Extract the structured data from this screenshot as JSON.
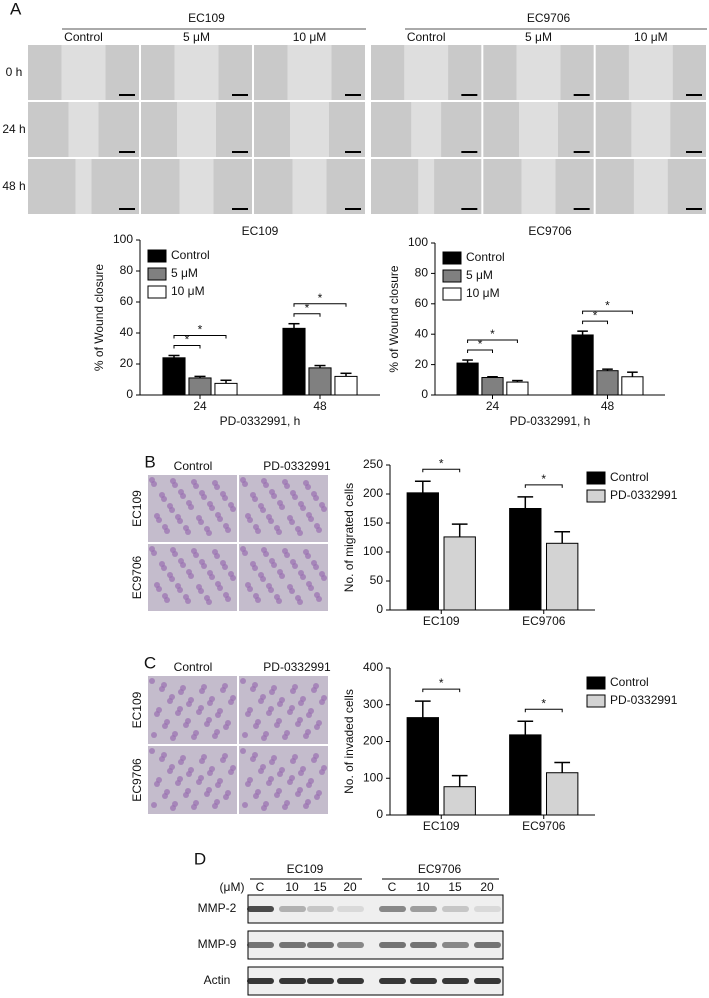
{
  "panel_a": {
    "label": "A",
    "cell_lines": [
      {
        "name": "EC109",
        "conditions": [
          "Control",
          "5 μM",
          "10 μM"
        ]
      },
      {
        "name": "EC9706",
        "conditions": [
          "Control",
          "5 μM",
          "10 μM"
        ]
      }
    ],
    "times": [
      "0 h",
      "24 h",
      "48 h"
    ]
  },
  "panel_b": {
    "label": "B",
    "columns": [
      "Control",
      "PD-0332991"
    ],
    "rows": [
      "EC109",
      "EC9706"
    ]
  },
  "panel_c": {
    "label": "C",
    "columns": [
      "Control",
      "PD-0332991"
    ],
    "rows": [
      "EC109",
      "EC9706"
    ]
  },
  "panel_d": {
    "label": "D",
    "unit": "(μM)",
    "groups": [
      {
        "name": "EC109",
        "lanes": [
          "C",
          "10",
          "15",
          "20"
        ]
      },
      {
        "name": "EC9706",
        "lanes": [
          "C",
          "10",
          "15",
          "20"
        ]
      }
    ],
    "blots": [
      "MMP-2",
      "MMP-9",
      "Actin"
    ]
  },
  "chart_data": [
    {
      "type": "bar",
      "title": "EC109",
      "x_label": "PD-0332991, h",
      "y_label": "% of Wound closure",
      "categories": [
        "24",
        "48"
      ],
      "series": [
        {
          "name": "Control",
          "color": "#000000",
          "values": [
            24,
            43
          ],
          "errors": [
            1.5,
            3
          ]
        },
        {
          "name": "5 μM",
          "color": "#808080",
          "values": [
            11,
            17.5
          ],
          "errors": [
            1,
            1.5
          ]
        },
        {
          "name": "10 μM",
          "color": "#ffffff",
          "values": [
            7.5,
            12
          ],
          "errors": [
            2,
            2
          ]
        }
      ],
      "ylim": [
        0,
        100
      ],
      "yticks": [
        0,
        20,
        40,
        60,
        80,
        100
      ],
      "annotations": [
        "*",
        "*",
        "*",
        "*"
      ]
    },
    {
      "type": "bar",
      "title": "EC9706",
      "x_label": "PD-0332991, h",
      "y_label": "% of Wound closure",
      "categories": [
        "24",
        "48"
      ],
      "series": [
        {
          "name": "Control",
          "color": "#000000",
          "values": [
            21,
            39.5
          ],
          "errors": [
            2,
            2.5
          ]
        },
        {
          "name": "5 μM",
          "color": "#808080",
          "values": [
            11.5,
            16
          ],
          "errors": [
            0.5,
            1
          ]
        },
        {
          "name": "10 μM",
          "color": "#ffffff",
          "values": [
            8.5,
            12
          ],
          "errors": [
            1,
            3
          ]
        }
      ],
      "ylim": [
        0,
        100
      ],
      "yticks": [
        0,
        20,
        40,
        60,
        80,
        100
      ],
      "annotations": [
        "*",
        "*",
        "*",
        "*"
      ]
    },
    {
      "type": "bar",
      "y_label": "No. of migrated cells",
      "categories": [
        "EC109",
        "EC9706"
      ],
      "series": [
        {
          "name": "Control",
          "color": "#000000",
          "values": [
            202,
            175
          ],
          "errors": [
            20,
            20
          ]
        },
        {
          "name": "PD-0332991",
          "color": "#d3d3d3",
          "values": [
            126,
            115
          ],
          "errors": [
            22,
            20
          ]
        }
      ],
      "ylim": [
        0,
        250
      ],
      "yticks": [
        0,
        50,
        100,
        150,
        200,
        250
      ],
      "annotations": [
        "*",
        "*"
      ]
    },
    {
      "type": "bar",
      "y_label": "No. of invaded cells",
      "categories": [
        "EC109",
        "EC9706"
      ],
      "series": [
        {
          "name": "Control",
          "color": "#000000",
          "values": [
            265,
            218
          ],
          "errors": [
            45,
            37
          ]
        },
        {
          "name": "PD-0332991",
          "color": "#d3d3d3",
          "values": [
            77,
            115
          ],
          "errors": [
            30,
            28
          ]
        }
      ],
      "ylim": [
        0,
        400
      ],
      "yticks": [
        0,
        100,
        200,
        300,
        400
      ],
      "annotations": [
        "*",
        "*"
      ]
    }
  ]
}
